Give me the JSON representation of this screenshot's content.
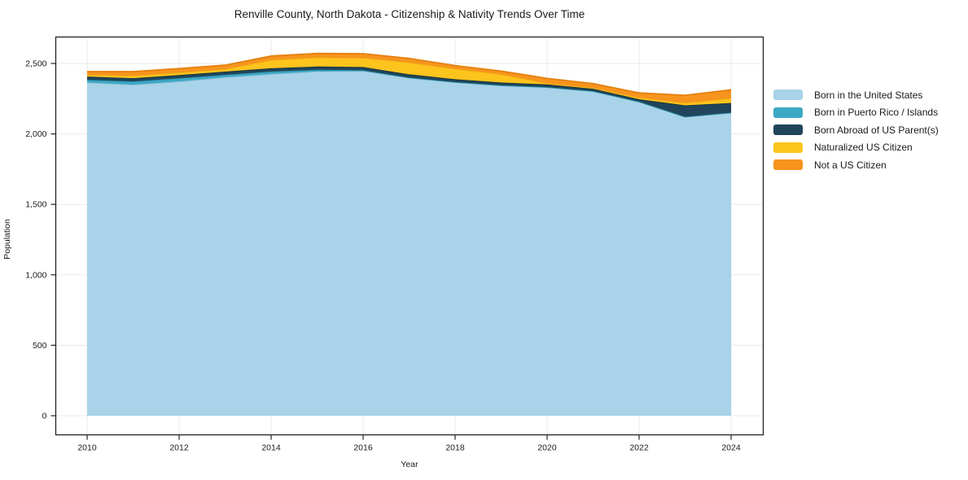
{
  "page": {
    "title": "Renville County, North Dakota - Citizenship & Nativity Trends Over Time"
  },
  "chart_data": {
    "type": "area",
    "stacked": true,
    "title": "Renville County, North Dakota - Citizenship & Nativity Trends Over Time",
    "xlabel": "Year",
    "ylabel": "Population",
    "x": [
      2010,
      2011,
      2012,
      2013,
      2014,
      2015,
      2016,
      2017,
      2018,
      2019,
      2020,
      2021,
      2022,
      2023,
      2024
    ],
    "x_tick_labels": [
      "2010",
      "2012",
      "2014",
      "2016",
      "2018",
      "2020",
      "2022",
      "2024"
    ],
    "x_ticks": [
      2010,
      2012,
      2014,
      2016,
      2018,
      2020,
      2022,
      2024
    ],
    "y_ticks": [
      0,
      500,
      1000,
      1500,
      2000,
      2500
    ],
    "y_tick_labels": [
      "0",
      "500",
      "1,000",
      "1,500",
      "2,000",
      "2,500"
    ],
    "ylim": [
      0,
      2690
    ],
    "xlim": [
      2009.3,
      2024.7
    ],
    "grid": true,
    "legend_position": "right",
    "series": [
      {
        "name": "Born in the United States",
        "color": "#a9d3e8",
        "line_color": "#8fc2dd",
        "values": [
          2365,
          2349,
          2372,
          2402,
          2425,
          2443,
          2446,
          2400,
          2368,
          2345,
          2332,
          2304,
          2229,
          2122,
          2151
        ]
      },
      {
        "name": "Born in Puerto Rico / Islands",
        "color": "#3da8c4",
        "line_color": "#2e93ae",
        "values": [
          19,
          23,
          23,
          17,
          18,
          12,
          6,
          0,
          0,
          0,
          0,
          0,
          0,
          0,
          0
        ]
      },
      {
        "name": "Born Abroad of US Parent(s)",
        "color": "#20455a",
        "line_color": "#16323f",
        "values": [
          23,
          23,
          23,
          23,
          23,
          23,
          23,
          23,
          20,
          20,
          19,
          16,
          17,
          81,
          68
        ]
      },
      {
        "name": "Naturalized US Citizen",
        "color": "#fcc41d",
        "line_color": "#f2b413",
        "values": [
          12,
          18,
          17,
          17,
          58,
          64,
          64,
          84,
          74,
          58,
          8,
          6,
          12,
          16,
          33
        ]
      },
      {
        "name": "Not a US Citizen",
        "color": "#f7941e",
        "line_color": "#e5800e",
        "values": [
          23,
          29,
          29,
          29,
          29,
          29,
          30,
          29,
          23,
          23,
          35,
          31,
          33,
          55,
          61
        ]
      }
    ]
  },
  "style": {
    "border_color": "#222222",
    "grid_color": "#eaeaea",
    "tick_color": "#222222",
    "text_color": "#1a1a1a",
    "background": "#ffffff"
  }
}
